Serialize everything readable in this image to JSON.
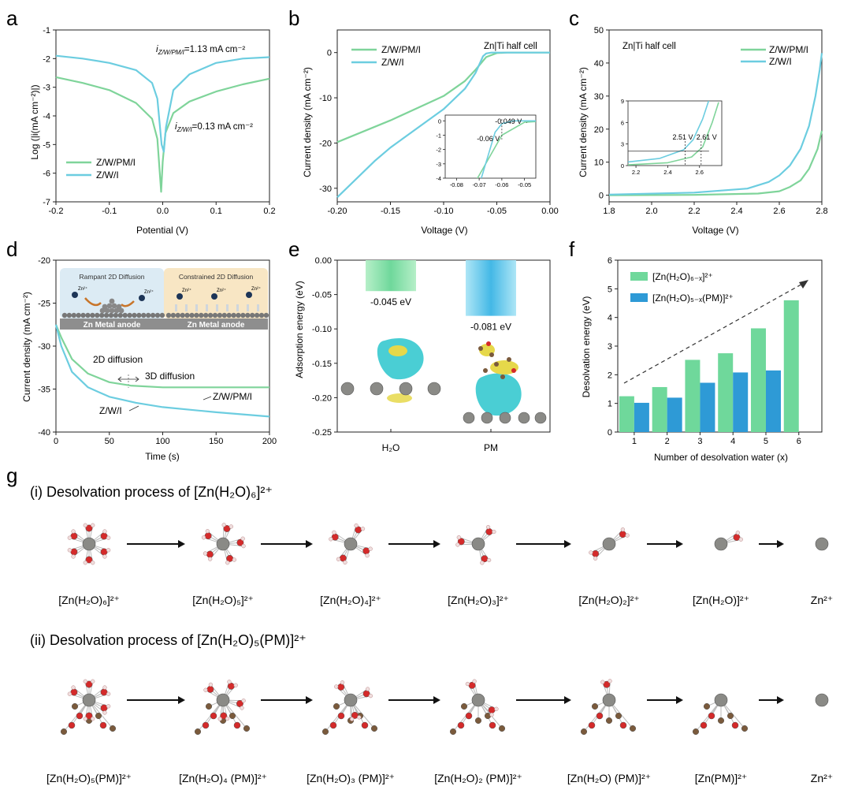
{
  "panel_letters": [
    "a",
    "b",
    "c",
    "d",
    "e",
    "f",
    "g"
  ],
  "colors": {
    "green": "#7fd49a",
    "cyan": "#6ccde0",
    "bar_green": "#6fd89b",
    "bar_blue": "#2e9ad6",
    "iso_cyan": "#36c9cf",
    "iso_yellow": "#e6d84a",
    "zn": "#8a8a86",
    "oxygen": "#d42a2a",
    "hydrogen": "#f0dede",
    "carbon": "#7a5a3c"
  },
  "chart_data": [
    {
      "id": "a",
      "type": "line",
      "xlabel": "Potential (V)",
      "ylabel": "Log (|i(mA cm⁻²)|)",
      "xlim": [
        -0.2,
        0.2
      ],
      "ylim": [
        -7,
        -1
      ],
      "xticks": [
        "-0.2",
        "-0.1",
        "0.0",
        "0.1",
        "0.2"
      ],
      "yticks": [
        "-1",
        "-2",
        "-3",
        "-4",
        "-5",
        "-6",
        "-7"
      ],
      "annotations": [
        "i",
        "Z/W/PM/I",
        "=1.13 mA cm⁻²",
        "i",
        "Z/W/I",
        "=0.13 mA cm⁻²"
      ],
      "legend": [
        "Z/W/PM/I",
        "Z/W/I"
      ],
      "series": [
        {
          "name": "Z/W/PM/I",
          "color": "green",
          "x": [
            -0.2,
            -0.15,
            -0.1,
            -0.05,
            -0.02,
            -0.01,
            -0.003,
            0.0,
            0.005,
            0.02,
            0.05,
            0.1,
            0.15,
            0.2
          ],
          "y": [
            -2.65,
            -2.85,
            -3.1,
            -3.55,
            -4.1,
            -4.8,
            -6.65,
            -5.6,
            -4.6,
            -3.9,
            -3.5,
            -3.15,
            -2.9,
            -2.7
          ]
        },
        {
          "name": "Z/W/I",
          "color": "cyan",
          "x": [
            -0.2,
            -0.15,
            -0.1,
            -0.05,
            -0.02,
            -0.01,
            -0.002,
            0.002,
            0.006,
            0.02,
            0.05,
            0.1,
            0.15,
            0.2
          ],
          "y": [
            -1.9,
            -2.0,
            -2.15,
            -2.4,
            -2.85,
            -3.4,
            -5.0,
            -5.25,
            -4.4,
            -3.1,
            -2.55,
            -2.15,
            -2.0,
            -1.95
          ]
        }
      ]
    },
    {
      "id": "b",
      "type": "line",
      "xlabel": "Voltage (V)",
      "ylabel": "Current density (mA cm⁻²)",
      "xlim": [
        -0.2,
        0.0
      ],
      "ylim": [
        -33,
        5
      ],
      "xticks": [
        "-0.20",
        "-0.15",
        "-0.10",
        "-0.05",
        "0.00"
      ],
      "yticks": [
        "0",
        "-10",
        "-20",
        "-30"
      ],
      "corner_label": "Zn|Ti half cell",
      "legend": [
        "Z/W/PM/I",
        "Z/W/I"
      ],
      "inset": {
        "xticks": [
          "-0.08",
          "-0.07",
          "-0.06",
          "-0.05"
        ],
        "yticks": [
          "0",
          "-1",
          "-2",
          "-3",
          "-4"
        ],
        "labels": [
          "-0.049 V",
          "-0.06 V"
        ]
      },
      "series": [
        {
          "name": "Z/W/PM/I",
          "color": "green",
          "x": [
            -0.2,
            -0.15,
            -0.1,
            -0.08,
            -0.07,
            -0.06,
            -0.05,
            -0.04,
            0.0
          ],
          "y": [
            -19.8,
            -15.0,
            -9.6,
            -6.3,
            -3.8,
            -1.0,
            -0.1,
            0.0,
            0.0
          ]
        },
        {
          "name": "Z/W/I",
          "color": "cyan",
          "x": [
            -0.2,
            -0.165,
            -0.15,
            -0.1,
            -0.08,
            -0.07,
            -0.063,
            -0.06,
            -0.055,
            0.0
          ],
          "y": [
            -32.0,
            -24.0,
            -21.0,
            -12.5,
            -8.0,
            -4.5,
            -0.8,
            -0.2,
            0.0,
            0.0
          ]
        }
      ]
    },
    {
      "id": "c",
      "type": "line",
      "xlabel": "Voltage (V)",
      "ylabel": "Current density (mA cm⁻²)",
      "xlim": [
        1.8,
        2.8
      ],
      "ylim": [
        -2,
        50
      ],
      "xticks": [
        "1.8",
        "2.0",
        "2.2",
        "2.4",
        "2.6",
        "2.8"
      ],
      "yticks": [
        "0",
        "10",
        "20",
        "30",
        "40",
        "50"
      ],
      "corner_label": "Zn|Ti half cell",
      "legend": [
        "Z/W/PM/I",
        "Z/W/I"
      ],
      "inset": {
        "xticks": [
          "2.2",
          "2.4",
          "2.6"
        ],
        "yticks": [
          "0",
          "3",
          "6",
          "9"
        ],
        "labels": [
          "2.51 V",
          "2.61 V"
        ]
      },
      "series": [
        {
          "name": "Z/W/PM/I",
          "color": "green",
          "x": [
            1.8,
            2.2,
            2.5,
            2.6,
            2.65,
            2.7,
            2.74,
            2.78,
            2.8
          ],
          "y": [
            0.0,
            0.1,
            0.5,
            1.2,
            2.5,
            4.5,
            8.0,
            14.0,
            19.5
          ]
        },
        {
          "name": "Z/W/I",
          "color": "cyan",
          "x": [
            1.8,
            2.2,
            2.45,
            2.55,
            2.6,
            2.65,
            2.7,
            2.74,
            2.77,
            2.79,
            2.8
          ],
          "y": [
            0.2,
            0.8,
            2.0,
            4.0,
            6.0,
            9.0,
            14.0,
            21.0,
            30.0,
            38.0,
            43.0
          ]
        }
      ]
    },
    {
      "id": "d",
      "type": "line",
      "xlabel": "Time (s)",
      "ylabel": "Current density (mA cm⁻²)",
      "xlim": [
        0,
        200
      ],
      "ylim": [
        -40,
        -20
      ],
      "xticks": [
        "0",
        "50",
        "100",
        "150",
        "200"
      ],
      "yticks": [
        "-20",
        "-25",
        "-30",
        "-35",
        "-40"
      ],
      "annotations": [
        "2D diffusion",
        "3D diffusion",
        "Z/W/PM/I",
        "Z/W/I"
      ],
      "inset": {
        "left_title": "Rampant 2D Diffusion",
        "right_title": "Constrained 2D Diffusion",
        "left_anode": "Zn Metal anode",
        "right_anode": "Zn Metal anode",
        "ion": "Zn²⁺"
      },
      "series": [
        {
          "name": "Z/W/PM/I",
          "color": "green",
          "x": [
            0,
            5,
            15,
            30,
            50,
            70,
            100,
            150,
            200
          ],
          "y": [
            -27.5,
            -29.0,
            -31.5,
            -33.2,
            -34.2,
            -34.6,
            -34.8,
            -34.8,
            -34.8
          ]
        },
        {
          "name": "Z/W/I",
          "color": "cyan",
          "x": [
            0,
            5,
            15,
            30,
            50,
            75,
            100,
            150,
            200
          ],
          "y": [
            -27.5,
            -30.0,
            -33.0,
            -34.8,
            -35.9,
            -36.6,
            -37.1,
            -37.7,
            -38.2
          ]
        }
      ]
    },
    {
      "id": "e",
      "type": "bar",
      "ylabel": "Adsorption energy (eV)",
      "ylim": [
        -0.25,
        0.0
      ],
      "yticks": [
        "0.00",
        "-0.05",
        "-0.10",
        "-0.15",
        "-0.20",
        "-0.25"
      ],
      "categories": [
        "H₂O",
        "PM"
      ],
      "values": [
        -0.045,
        -0.081
      ],
      "value_labels": [
        "-0.045 eV",
        "-0.081 eV"
      ]
    },
    {
      "id": "f",
      "type": "bar",
      "xlabel": "Number of desolvation water (x)",
      "ylabel": "Desolvation energy (eV)",
      "ylim": [
        0,
        6
      ],
      "yticks": [
        "0",
        "1",
        "2",
        "3",
        "4",
        "5",
        "6"
      ],
      "categories": [
        "1",
        "2",
        "3",
        "4",
        "5",
        "6"
      ],
      "legend": [
        "[Zn(H₂O)₆₋ₓ]²⁺",
        "[Zn(H₂O)₅₋ₓ(PM)]²⁺"
      ],
      "series": [
        {
          "name": "[Zn(H2O)6-x]2+",
          "color": "bar_green",
          "values": [
            1.25,
            1.57,
            2.52,
            2.75,
            3.62,
            4.6
          ]
        },
        {
          "name": "[Zn(H2O)5-x(PM)]2+",
          "color": "bar_blue",
          "values": [
            1.02,
            1.2,
            1.72,
            2.08,
            2.15,
            null
          ]
        }
      ]
    }
  ],
  "panel_g": {
    "row1_title": "(i) Desolvation process of [Zn(H₂O)₆]²⁺",
    "row1_labels": [
      "[Zn(H₂O)₆]²⁺",
      "[Zn(H₂O)₅]²⁺",
      "[Zn(H₂O)₄]²⁺",
      "[Zn(H₂O)₃]²⁺",
      "[Zn(H₂O)₂]²⁺",
      "[Zn(H₂O)]²⁺",
      "Zn²⁺"
    ],
    "row1_waters": [
      6,
      5,
      4,
      3,
      2,
      1,
      0
    ],
    "row2_title": "(ii) Desolvation process of [Zn(H₂O)₅(PM)]²⁺",
    "row2_labels": [
      "[Zn(H₂O)₅(PM)]²⁺",
      "[Zn(H₂O)₄ (PM)]²⁺",
      "[Zn(H₂O)₃ (PM)]²⁺",
      "[Zn(H₂O)₂ (PM)]²⁺",
      "[Zn(H₂O) (PM)]²⁺",
      "[Zn(PM)]²⁺",
      "Zn²⁺"
    ],
    "row2_waters": [
      5,
      4,
      3,
      2,
      1,
      0,
      0
    ],
    "row2_pm": [
      true,
      true,
      true,
      true,
      true,
      true,
      false
    ]
  }
}
